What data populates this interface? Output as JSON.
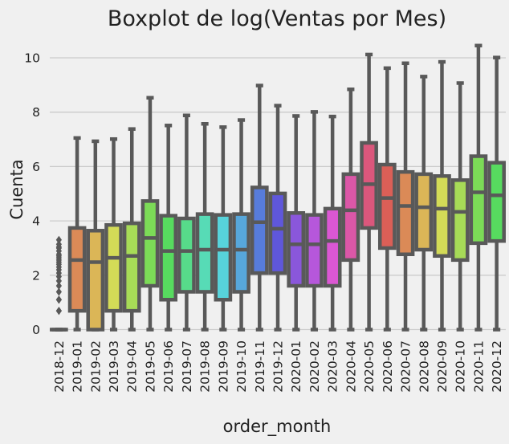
{
  "chart_data": {
    "type": "box",
    "title": "Boxplot de log(Ventas por Mes)",
    "xlabel": "order_month",
    "ylabel": "Cuenta",
    "ylim": [
      -0.4,
      10.9
    ],
    "yticks": [
      0,
      2,
      4,
      6,
      8,
      10
    ],
    "grid": true,
    "categories": [
      "2018-12",
      "2019-01",
      "2019-02",
      "2019-03",
      "2019-04",
      "2019-05",
      "2019-06",
      "2019-07",
      "2019-08",
      "2019-09",
      "2019-10",
      "2019-11",
      "2019-12",
      "2020-01",
      "2020-02",
      "2020-03",
      "2020-04",
      "2020-05",
      "2020-06",
      "2020-07",
      "2020-08",
      "2020-09",
      "2020-10",
      "2020-11",
      "2020-12"
    ],
    "colors": [
      "#db5f57",
      "#db8a57",
      "#dbb657",
      "#d3db57",
      "#a7db57",
      "#7cdb57",
      "#57db5f",
      "#57db8a",
      "#57dbb6",
      "#57d3db",
      "#57a7db",
      "#577cdb",
      "#5f57db",
      "#8a57db",
      "#b657db",
      "#db57d3",
      "#db57a7",
      "#db577c",
      "#db5f57",
      "#db8a57",
      "#dbb657",
      "#d3db57",
      "#a7db57",
      "#7cdb57",
      "#57db5f"
    ],
    "boxes": [
      {
        "min": 0.0,
        "q1": 0.0,
        "median": 0.0,
        "q3": 0.0,
        "max": 0.0,
        "outliers": [
          0.69,
          0.69,
          1.1,
          1.1,
          1.39,
          1.61,
          1.79,
          1.95,
          2.08,
          2.2,
          2.3,
          2.4,
          2.48,
          2.56,
          2.64,
          2.71,
          2.77,
          2.89,
          3.0,
          3.04,
          3.14,
          3.3
        ]
      },
      {
        "min": 0.0,
        "q1": 0.69,
        "median": 2.56,
        "q3": 3.74,
        "max": 7.05,
        "outliers": []
      },
      {
        "min": 0.0,
        "q1": 0.0,
        "median": 2.48,
        "q3": 3.64,
        "max": 6.93,
        "outliers": []
      },
      {
        "min": 0.0,
        "q1": 0.69,
        "median": 2.64,
        "q3": 3.85,
        "max": 7.01,
        "outliers": []
      },
      {
        "min": 0.0,
        "q1": 0.69,
        "median": 2.71,
        "q3": 3.91,
        "max": 7.38,
        "outliers": []
      },
      {
        "min": 0.0,
        "q1": 1.61,
        "median": 3.37,
        "q3": 4.73,
        "max": 8.53,
        "outliers": []
      },
      {
        "min": 0.0,
        "q1": 1.1,
        "median": 2.89,
        "q3": 4.19,
        "max": 7.51,
        "outliers": []
      },
      {
        "min": 0.0,
        "q1": 1.39,
        "median": 2.89,
        "q3": 4.09,
        "max": 7.88,
        "outliers": []
      },
      {
        "min": 0.0,
        "q1": 1.39,
        "median": 2.94,
        "q3": 4.25,
        "max": 7.57,
        "outliers": []
      },
      {
        "min": 0.0,
        "q1": 1.1,
        "median": 2.94,
        "q3": 4.22,
        "max": 7.45,
        "outliers": []
      },
      {
        "min": 0.0,
        "q1": 1.39,
        "median": 2.94,
        "q3": 4.25,
        "max": 7.71,
        "outliers": []
      },
      {
        "min": 0.0,
        "q1": 2.08,
        "median": 3.95,
        "q3": 5.23,
        "max": 8.98,
        "outliers": []
      },
      {
        "min": 0.0,
        "q1": 2.08,
        "median": 3.71,
        "q3": 5.01,
        "max": 8.24,
        "outliers": []
      },
      {
        "min": 0.0,
        "q1": 1.61,
        "median": 3.14,
        "q3": 4.29,
        "max": 7.86,
        "outliers": []
      },
      {
        "min": 0.0,
        "q1": 1.61,
        "median": 3.14,
        "q3": 4.22,
        "max": 8.01,
        "outliers": []
      },
      {
        "min": 0.0,
        "q1": 1.61,
        "median": 3.26,
        "q3": 4.45,
        "max": 7.84,
        "outliers": []
      },
      {
        "min": 0.0,
        "q1": 2.56,
        "median": 4.39,
        "q3": 5.72,
        "max": 8.84,
        "outliers": []
      },
      {
        "min": 0.0,
        "q1": 3.74,
        "median": 5.35,
        "q3": 6.87,
        "max": 10.12,
        "outliers": []
      },
      {
        "min": 0.0,
        "q1": 3.0,
        "median": 4.84,
        "q3": 6.07,
        "max": 9.62,
        "outliers": []
      },
      {
        "min": 0.0,
        "q1": 2.77,
        "median": 4.55,
        "q3": 5.8,
        "max": 9.8,
        "outliers": []
      },
      {
        "min": 0.0,
        "q1": 2.94,
        "median": 4.5,
        "q3": 5.72,
        "max": 9.31,
        "outliers": []
      },
      {
        "min": 0.0,
        "q1": 2.71,
        "median": 4.45,
        "q3": 5.65,
        "max": 9.85,
        "outliers": []
      },
      {
        "min": 0.0,
        "q1": 2.56,
        "median": 4.33,
        "q3": 5.5,
        "max": 9.07,
        "outliers": []
      },
      {
        "min": 0.0,
        "q1": 3.18,
        "median": 5.05,
        "q3": 6.38,
        "max": 10.45,
        "outliers": []
      },
      {
        "min": 0.0,
        "q1": 3.26,
        "median": 4.94,
        "q3": 6.14,
        "max": 10.01,
        "outliers": []
      }
    ]
  }
}
